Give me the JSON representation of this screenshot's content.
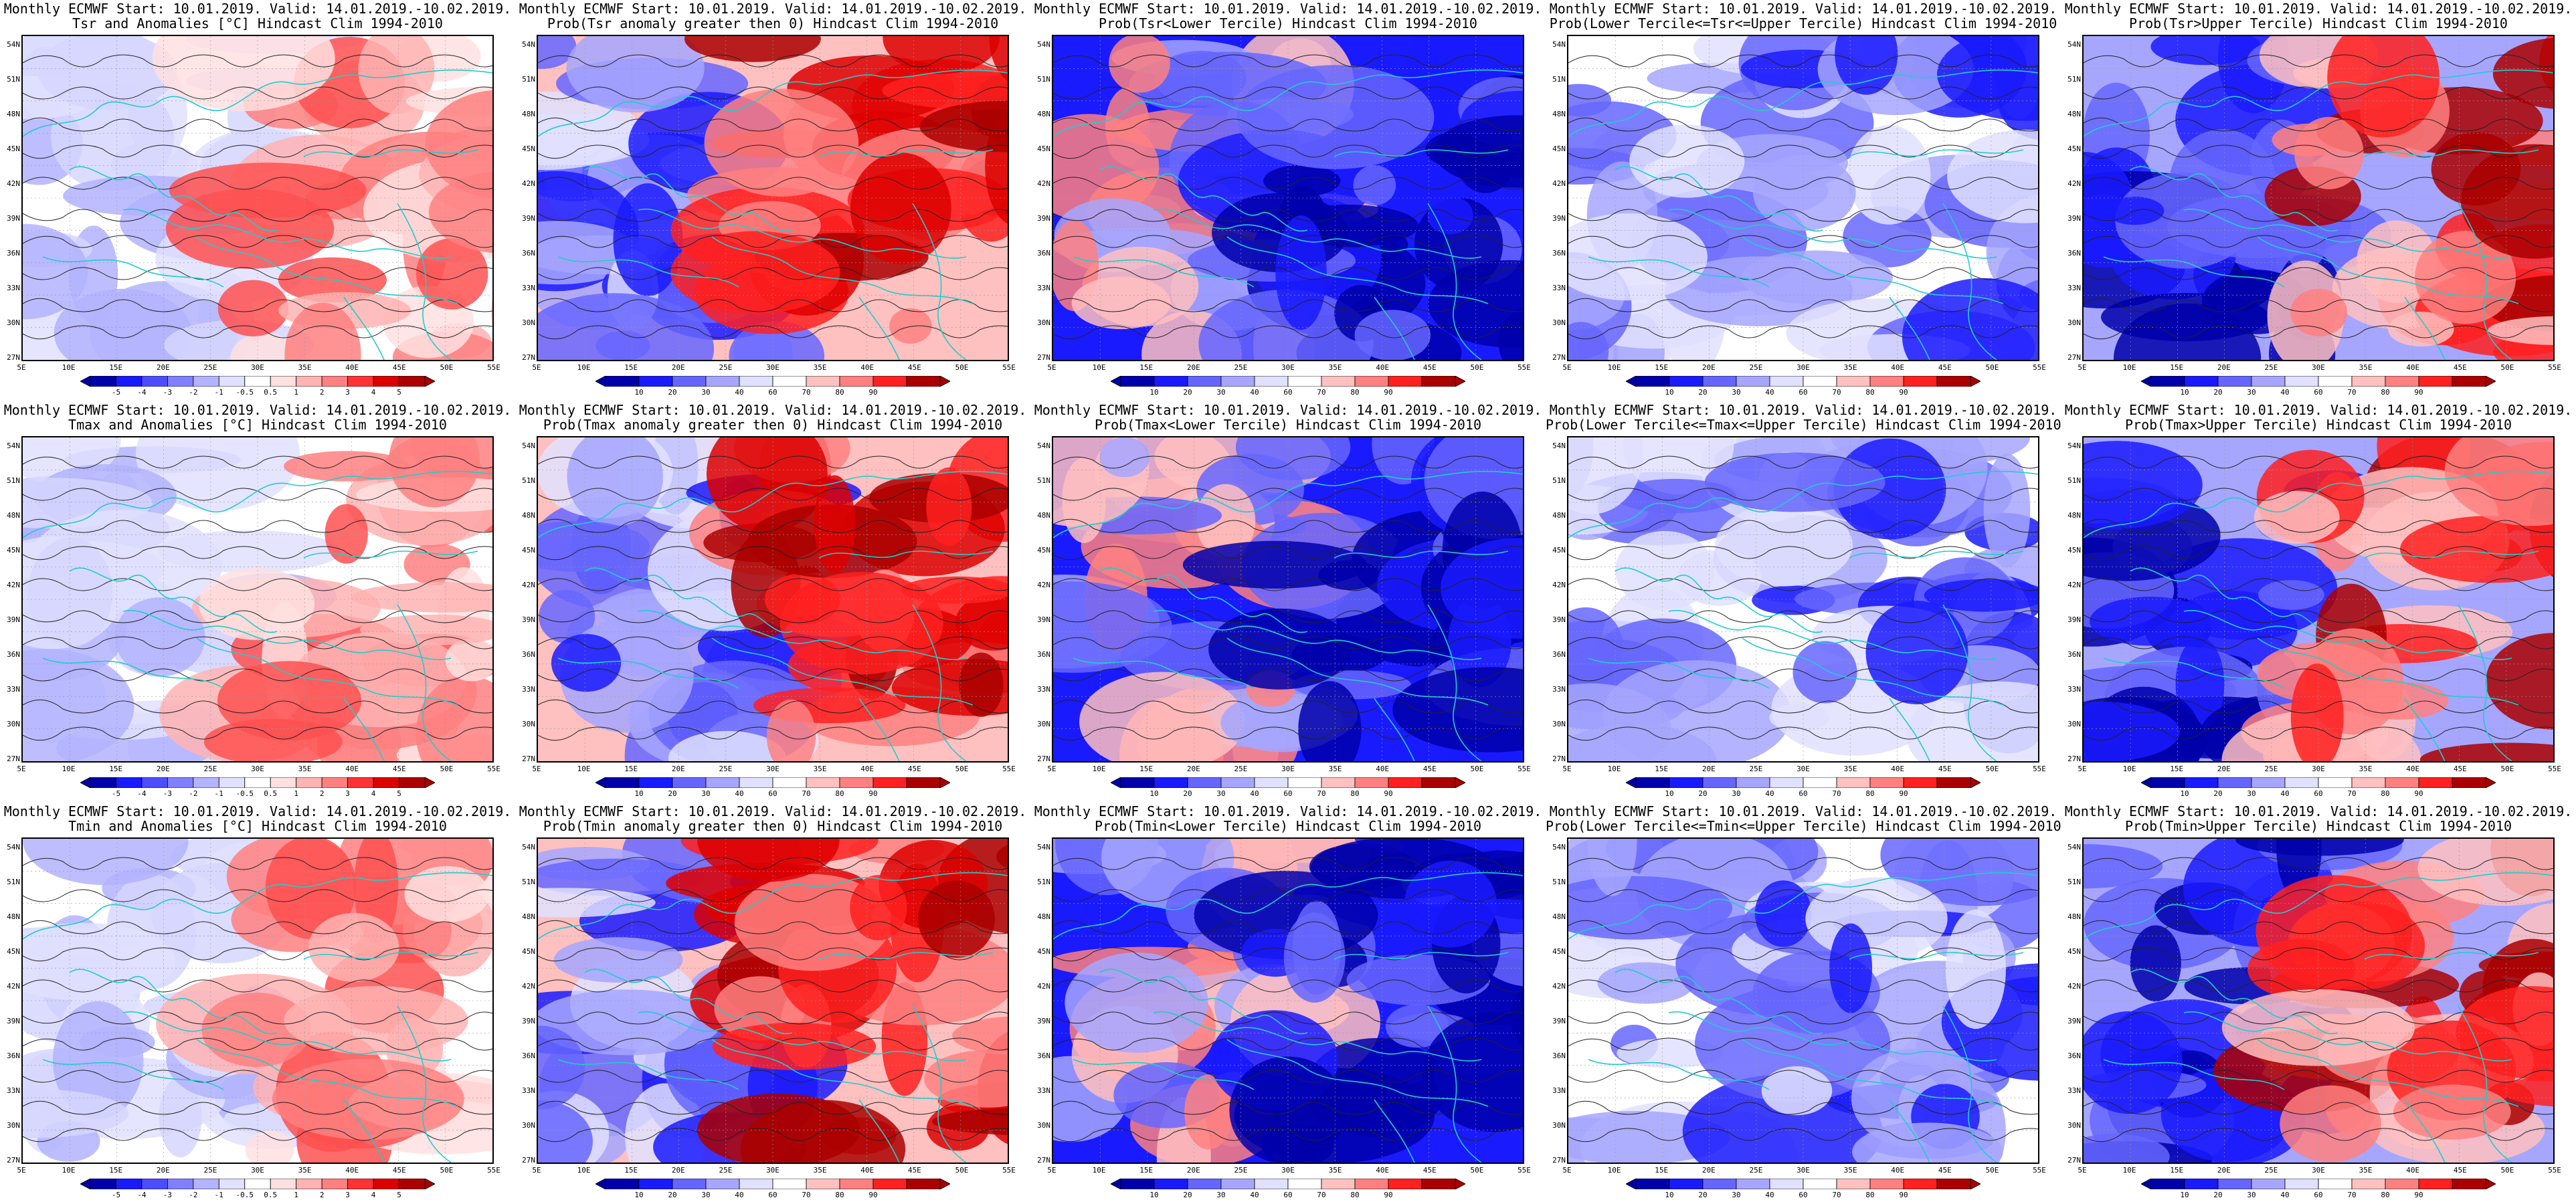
{
  "map_common": {
    "lat_ticks": [
      "54N",
      "51N",
      "48N",
      "45N",
      "42N",
      "39N",
      "36N",
      "33N",
      "30N",
      "27N"
    ],
    "lon_ticks": [
      "5E",
      "10E",
      "15E",
      "20E",
      "25E",
      "30E",
      "35E",
      "40E",
      "45E",
      "50E",
      "55E"
    ]
  },
  "colorbars": {
    "anomaly": {
      "labels": [
        "-5",
        "-4",
        "-3",
        "-2",
        "-1",
        "-0.5",
        "0.5",
        "1",
        "2",
        "3",
        "4",
        "5"
      ],
      "colors": [
        "#0000aa",
        "#1a1aff",
        "#4d4dff",
        "#8080ff",
        "#b3b3ff",
        "#e0e0ff",
        "#ffffff",
        "#ffe0e0",
        "#ffb3b3",
        "#ff8080",
        "#ff3333",
        "#dd0000",
        "#aa0000"
      ]
    },
    "probability": {
      "labels": [
        "10",
        "20",
        "30",
        "40",
        "60",
        "70",
        "80",
        "90"
      ],
      "colors": [
        "#0000aa",
        "#1a1aff",
        "#6666ff",
        "#a6a6ff",
        "#e0e0ff",
        "#ffffff",
        "#ffc0c0",
        "#ff8080",
        "#ff2020",
        "#aa0000"
      ]
    }
  },
  "rows": [
    {
      "panels": [
        {
          "line1": "Monthly ECMWF Start: 10.01.2019. Valid: 14.01.2019.-10.02.2019.",
          "line2": "Tsr and Anomalies [°C] Hindcast Clim 1994-2010",
          "scale": "anomaly",
          "pattern": "warm-east"
        },
        {
          "line1": "Monthly ECMWF Start: 10.01.2019. Valid: 14.01.2019.-10.02.2019.",
          "line2": "Prob(Tsr anomaly greater then 0) Hindcast Clim 1994-2010",
          "scale": "probability",
          "pattern": "warm-east-strong"
        },
        {
          "line1": "Monthly ECMWF Start: 10.01.2019. Valid: 14.01.2019.-10.02.2019.",
          "line2": "Prob(Tsr<Lower Tercile) Hindcast Clim 1994-2010",
          "scale": "probability",
          "pattern": "cold-dominant"
        },
        {
          "line1": "Monthly ECMWF Start: 10.01.2019. Valid: 14.01.2019.-10.02.2019.",
          "line2": "Prob(Lower Tercile<=Tsr<=Upper Tercile) Hindcast Clim 1994-2010",
          "scale": "probability",
          "pattern": "mixed-light"
        },
        {
          "line1": "Monthly ECMWF Start: 10.01.2019. Valid: 14.01.2019.-10.02.2019.",
          "line2": "Prob(Tsr>Upper Tercile) Hindcast Clim 1994-2010",
          "scale": "probability",
          "pattern": "upper-tercile"
        }
      ]
    },
    {
      "panels": [
        {
          "line1": "Monthly ECMWF Start: 10.01.2019. Valid: 14.01.2019.-10.02.2019.",
          "line2": "Tmax and Anomalies [°C] Hindcast Clim 1994-2010",
          "scale": "anomaly",
          "pattern": "warm-east"
        },
        {
          "line1": "Monthly ECMWF Start: 10.01.2019. Valid: 14.01.2019.-10.02.2019.",
          "line2": "Prob(Tmax anomaly greater then 0) Hindcast Clim 1994-2010",
          "scale": "probability",
          "pattern": "warm-east-strong"
        },
        {
          "line1": "Monthly ECMWF Start: 10.01.2019. Valid: 14.01.2019.-10.02.2019.",
          "line2": "Prob(Tmax<Lower Tercile) Hindcast Clim 1994-2010",
          "scale": "probability",
          "pattern": "cold-dominant"
        },
        {
          "line1": "Monthly ECMWF Start: 10.01.2019. Valid: 14.01.2019.-10.02.2019.",
          "line2": "Prob(Lower Tercile<=Tmax<=Upper Tercile) Hindcast Clim 1994-2010",
          "scale": "probability",
          "pattern": "mixed-light"
        },
        {
          "line1": "Monthly ECMWF Start: 10.01.2019. Valid: 14.01.2019.-10.02.2019.",
          "line2": "Prob(Tmax>Upper Tercile) Hindcast Clim 1994-2010",
          "scale": "probability",
          "pattern": "upper-tercile"
        }
      ]
    },
    {
      "panels": [
        {
          "line1": "Monthly ECMWF Start: 10.01.2019. Valid: 14.01.2019.-10.02.2019.",
          "line2": "Tmin and Anomalies [°C] Hindcast Clim 1994-2010",
          "scale": "anomaly",
          "pattern": "warm-east"
        },
        {
          "line1": "Monthly ECMWF Start: 10.01.2019. Valid: 14.01.2019.-10.02.2019.",
          "line2": "Prob(Tmin anomaly greater then 0) Hindcast Clim 1994-2010",
          "scale": "probability",
          "pattern": "warm-east-strong"
        },
        {
          "line1": "Monthly ECMWF Start: 10.01.2019. Valid: 14.01.2019.-10.02.2019.",
          "line2": "Prob(Tmin<Lower Tercile) Hindcast Clim 1994-2010",
          "scale": "probability",
          "pattern": "cold-dominant"
        },
        {
          "line1": "Monthly ECMWF Start: 10.01.2019. Valid: 14.01.2019.-10.02.2019.",
          "line2": "Prob(Lower Tercile<=Tmin<=Upper Tercile) Hindcast Clim 1994-2010",
          "scale": "probability",
          "pattern": "mixed-light"
        },
        {
          "line1": "Monthly ECMWF Start: 10.01.2019. Valid: 14.01.2019.-10.02.2019.",
          "line2": "Prob(Tmin>Upper Tercile) Hindcast Clim 1994-2010",
          "scale": "probability",
          "pattern": "upper-tercile"
        }
      ]
    }
  ]
}
